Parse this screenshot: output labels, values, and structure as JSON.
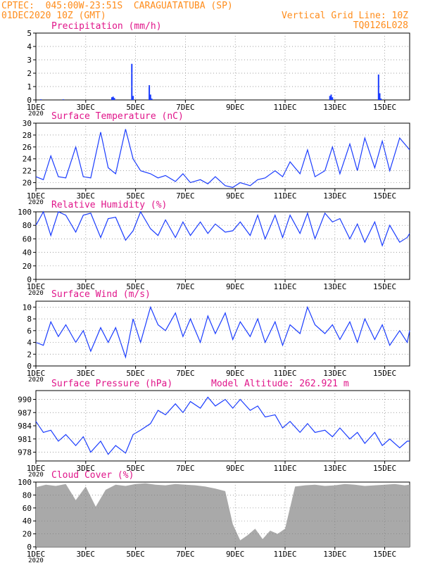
{
  "header": {
    "line1": "CPTEC:  045:00W-23:51S  CARAGUATATUBA (SP)",
    "line2": "01DEC2020 10Z (GMT)",
    "grid_note": "Vertical Grid Line: 10Z",
    "code": "TQ0126L028"
  },
  "colors": {
    "header": "#ff8c1a",
    "title": "#e0158a",
    "series": "#1a3cff",
    "cloud": "#a9a9a9",
    "grid": "#808080"
  },
  "x_axis": {
    "ticks": [
      {
        "day": 1,
        "label": "1DEC"
      },
      {
        "day": 3,
        "label": "3DEC"
      },
      {
        "day": 5,
        "label": "5DEC"
      },
      {
        "day": 7,
        "label": "7DEC"
      },
      {
        "day": 9,
        "label": "9DEC"
      },
      {
        "day": 11,
        "label": "11DEC"
      },
      {
        "day": 13,
        "label": "13DEC"
      },
      {
        "day": 15,
        "label": "15DEC"
      }
    ],
    "start": "01DEC2020 10Z",
    "end": "16DEC2020 10Z",
    "year_label": "2020"
  },
  "chart_data": [
    {
      "type": "bar",
      "title": "Precipitation  (mm/h)",
      "ylim": [
        0,
        5
      ],
      "yticks": [
        0,
        1,
        2,
        3,
        4,
        5
      ],
      "x": [
        1.2,
        2.1,
        4.05,
        4.1,
        4.15,
        4.85,
        4.9,
        5.55,
        5.6,
        5.65,
        12.8,
        12.85,
        12.9,
        14.75,
        14.8,
        14.85
      ],
      "values": [
        0.05,
        0.05,
        0.2,
        0.25,
        0.15,
        2.7,
        0.3,
        1.1,
        0.4,
        0.1,
        0.3,
        0.4,
        0.2,
        1.9,
        0.5,
        0.1
      ]
    },
    {
      "type": "line",
      "title": "Surface Temperature  (nC)",
      "ylim": [
        19,
        30
      ],
      "yticks": [
        20,
        22,
        24,
        26,
        28,
        30
      ],
      "x": [
        1.0,
        1.3,
        1.6,
        1.9,
        2.2,
        2.6,
        2.9,
        3.2,
        3.6,
        3.9,
        4.2,
        4.6,
        4.9,
        5.2,
        5.6,
        5.9,
        6.2,
        6.6,
        6.9,
        7.2,
        7.6,
        7.9,
        8.2,
        8.6,
        8.9,
        9.2,
        9.6,
        9.9,
        10.2,
        10.6,
        10.9,
        11.2,
        11.6,
        11.9,
        12.2,
        12.6,
        12.9,
        13.2,
        13.6,
        13.9,
        14.2,
        14.6,
        14.9,
        15.2,
        15.6,
        15.9,
        16.0
      ],
      "values": [
        21.0,
        20.5,
        24.5,
        21.0,
        20.8,
        26.0,
        21.0,
        20.8,
        28.5,
        22.5,
        21.5,
        29.0,
        24.0,
        22.0,
        21.5,
        20.8,
        21.2,
        20.2,
        21.5,
        20.0,
        20.5,
        19.8,
        21.0,
        19.5,
        19.2,
        20.0,
        19.5,
        20.5,
        20.8,
        22.0,
        21.0,
        23.5,
        21.5,
        25.5,
        21.0,
        22.0,
        26.0,
        21.5,
        26.5,
        22.0,
        27.5,
        22.5,
        27.0,
        22.0,
        27.5,
        26.0,
        25.5
      ]
    },
    {
      "type": "line",
      "title": "Relative Humidity  (%)",
      "ylim": [
        0,
        100
      ],
      "yticks": [
        0,
        20,
        40,
        60,
        80,
        100
      ],
      "x": [
        1.0,
        1.3,
        1.6,
        1.9,
        2.2,
        2.6,
        2.9,
        3.2,
        3.6,
        3.9,
        4.2,
        4.6,
        4.9,
        5.2,
        5.6,
        5.9,
        6.2,
        6.6,
        6.9,
        7.2,
        7.6,
        7.9,
        8.2,
        8.6,
        8.9,
        9.2,
        9.6,
        9.9,
        10.2,
        10.6,
        10.9,
        11.2,
        11.6,
        11.9,
        12.2,
        12.6,
        12.9,
        13.2,
        13.6,
        13.9,
        14.2,
        14.6,
        14.9,
        15.2,
        15.6,
        15.9,
        16.0
      ],
      "values": [
        80,
        100,
        65,
        100,
        95,
        70,
        95,
        98,
        62,
        90,
        92,
        58,
        72,
        100,
        75,
        65,
        88,
        62,
        85,
        65,
        85,
        68,
        82,
        70,
        72,
        85,
        65,
        95,
        60,
        95,
        62,
        95,
        68,
        98,
        60,
        98,
        85,
        90,
        60,
        82,
        55,
        85,
        50,
        80,
        55,
        62,
        68
      ]
    },
    {
      "type": "line",
      "title": "Surface Wind  (m/s)",
      "ylim": [
        0,
        11
      ],
      "yticks": [
        0,
        2,
        4,
        6,
        8,
        10
      ],
      "x": [
        1.0,
        1.3,
        1.6,
        1.9,
        2.2,
        2.6,
        2.9,
        3.2,
        3.6,
        3.9,
        4.2,
        4.6,
        4.9,
        5.2,
        5.6,
        5.9,
        6.2,
        6.6,
        6.9,
        7.2,
        7.6,
        7.9,
        8.2,
        8.6,
        8.9,
        9.2,
        9.6,
        9.9,
        10.2,
        10.6,
        10.9,
        11.2,
        11.6,
        11.9,
        12.2,
        12.6,
        12.9,
        13.2,
        13.6,
        13.9,
        14.2,
        14.6,
        14.9,
        15.2,
        15.6,
        15.9,
        16.0
      ],
      "values": [
        4.0,
        3.5,
        7.5,
        5.0,
        7.0,
        4.0,
        6.0,
        2.5,
        6.5,
        4.0,
        6.5,
        1.5,
        8.0,
        4.0,
        10.0,
        7.0,
        6.0,
        9.0,
        5.0,
        8.0,
        4.0,
        8.5,
        5.5,
        9.0,
        4.5,
        7.5,
        5.0,
        8.0,
        4.0,
        7.5,
        3.5,
        7.0,
        5.5,
        10.0,
        7.0,
        5.5,
        7.0,
        4.5,
        7.5,
        4.0,
        8.0,
        4.5,
        7.0,
        3.5,
        6.0,
        4.0,
        6.0
      ]
    },
    {
      "type": "line",
      "title": "Surface Pressure  (hPa)",
      "annotation": "Model Altitude: 262.921  m",
      "ylim": [
        976,
        992
      ],
      "yticks": [
        978,
        981,
        984,
        987,
        990
      ],
      "x": [
        1.0,
        1.3,
        1.6,
        1.9,
        2.2,
        2.6,
        2.9,
        3.2,
        3.6,
        3.9,
        4.2,
        4.6,
        4.9,
        5.2,
        5.6,
        5.9,
        6.2,
        6.6,
        6.9,
        7.2,
        7.6,
        7.9,
        8.2,
        8.6,
        8.9,
        9.2,
        9.6,
        9.9,
        10.2,
        10.6,
        10.9,
        11.2,
        11.6,
        11.9,
        12.2,
        12.6,
        12.9,
        13.2,
        13.6,
        13.9,
        14.2,
        14.6,
        14.9,
        15.2,
        15.6,
        15.9,
        16.0
      ],
      "values": [
        985.0,
        982.5,
        983.0,
        980.5,
        982.0,
        979.5,
        981.5,
        978.0,
        980.5,
        977.5,
        979.5,
        977.8,
        982.0,
        983.0,
        984.5,
        987.5,
        986.5,
        989.0,
        987.0,
        989.5,
        988.0,
        990.5,
        988.5,
        990.0,
        988.0,
        990.0,
        987.5,
        988.5,
        986.0,
        986.5,
        983.5,
        985.0,
        982.5,
        984.5,
        982.5,
        983.0,
        981.5,
        983.5,
        981.0,
        982.5,
        980.0,
        982.5,
        979.5,
        981.0,
        979.0,
        980.5,
        980.5
      ]
    },
    {
      "type": "area",
      "title": "Cloud Cover  (%)",
      "ylim": [
        0,
        100
      ],
      "yticks": [
        0,
        20,
        40,
        60,
        80,
        100
      ],
      "x": [
        1.0,
        1.4,
        1.8,
        2.2,
        2.6,
        3.0,
        3.4,
        3.8,
        4.2,
        4.6,
        5.0,
        5.4,
        5.8,
        6.2,
        6.6,
        7.0,
        7.4,
        7.8,
        8.2,
        8.6,
        8.9,
        9.2,
        9.5,
        9.8,
        10.1,
        10.4,
        10.7,
        11.0,
        11.4,
        11.8,
        12.2,
        12.6,
        13.0,
        13.4,
        13.8,
        14.2,
        14.6,
        15.0,
        15.4,
        15.8,
        16.0
      ],
      "values": [
        92,
        96,
        94,
        97,
        72,
        93,
        62,
        88,
        96,
        94,
        97,
        98,
        96,
        95,
        97,
        96,
        95,
        93,
        90,
        86,
        35,
        10,
        18,
        28,
        12,
        25,
        20,
        28,
        93,
        95,
        96,
        94,
        95,
        97,
        96,
        94,
        95,
        96,
        97,
        95,
        96
      ]
    }
  ]
}
